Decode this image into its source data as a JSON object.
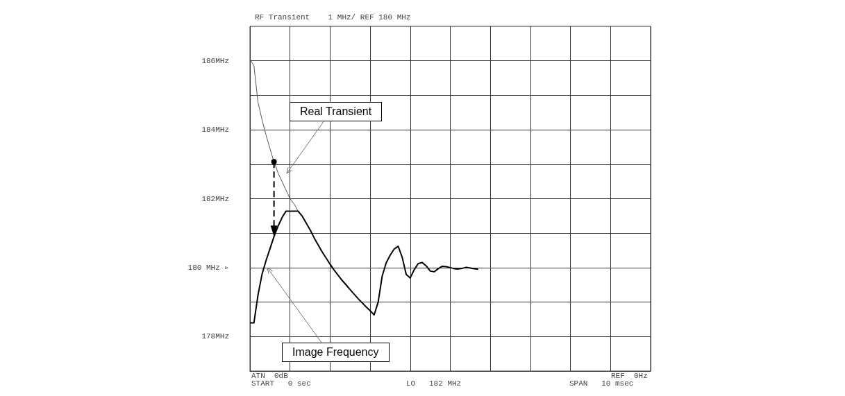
{
  "chart_data": {
    "type": "line",
    "title": "RF Transient    1 MHz/ REF 180 MHz",
    "categories": [
      null,
      null,
      null,
      null,
      null,
      null,
      null,
      null,
      null,
      null,
      null,
      null,
      null,
      null,
      null,
      null,
      null,
      null,
      null,
      null,
      null,
      null,
      null,
      null,
      null,
      null,
      null,
      null,
      null,
      null,
      null,
      null,
      null,
      null,
      null,
      null,
      null,
      null,
      null,
      null,
      null,
      null,
      null,
      null,
      null,
      null,
      null,
      null,
      null,
      null,
      null,
      null,
      null,
      null,
      null,
      null,
      null,
      null,
      null,
      null,
      null,
      null,
      null,
      null,
      null,
      null,
      null,
      null,
      null,
      null,
      null,
      null,
      null,
      null,
      null,
      null,
      null,
      null,
      null,
      null,
      null,
      null,
      null,
      null,
      null,
      null,
      null,
      null,
      null,
      null,
      null,
      null,
      null,
      null,
      null,
      null,
      null,
      null,
      null,
      null,
      null
    ],
    "series": [
      {
        "color": "#555555",
        "values": [
          186.05,
          185.85,
          184.8,
          184.3,
          183.85,
          183.45,
          183.07,
          182.75,
          182.5,
          182.25,
          182.0,
          181.85,
          181.64,
          null,
          null,
          null,
          null,
          null,
          null,
          null,
          null,
          null,
          null,
          null,
          null,
          null,
          null,
          null,
          null,
          null,
          null,
          null,
          null,
          null,
          null,
          null,
          null,
          null,
          null,
          null,
          null,
          null,
          null,
          null,
          null,
          null,
          null,
          null,
          null,
          null,
          null,
          null,
          null,
          null,
          null,
          null,
          null,
          null,
          null,
          null,
          null,
          null,
          null,
          null,
          null,
          null,
          null,
          null,
          null,
          null,
          null,
          null,
          null,
          null,
          null,
          null,
          null,
          null,
          null,
          null,
          null,
          null,
          null,
          null,
          null,
          null,
          null,
          null,
          null,
          null,
          null,
          null,
          null,
          null,
          null,
          null,
          null,
          null,
          null,
          null,
          null
        ]
      },
      {
        "color": "#000000",
        "values": [
          178.4,
          178.4,
          179.2,
          179.8,
          180.2,
          180.55,
          180.9,
          181.2,
          181.45,
          181.64,
          181.64,
          181.64,
          181.64,
          181.5,
          181.3,
          181.1,
          180.87,
          180.66,
          180.46,
          180.28,
          180.1,
          179.93,
          179.78,
          179.63,
          179.5,
          179.36,
          179.23,
          179.1,
          178.98,
          178.86,
          178.75,
          178.63,
          179.0,
          179.75,
          180.14,
          180.36,
          180.54,
          180.62,
          180.3,
          179.8,
          179.7,
          179.94,
          180.12,
          180.15,
          180.05,
          179.9,
          179.88,
          179.97,
          180.04,
          180.03,
          180.0,
          179.97,
          179.96,
          179.98,
          180.01,
          179.99,
          179.97,
          179.95,
          null,
          null,
          null,
          null,
          null,
          null,
          null,
          null,
          null,
          null,
          null,
          null,
          null,
          null,
          null,
          null,
          null,
          null,
          null,
          null,
          null,
          null,
          null,
          null,
          null,
          null,
          null,
          null,
          null,
          null,
          null,
          null,
          null,
          null,
          null,
          null,
          null,
          null,
          null,
          null,
          null,
          null,
          null
        ]
      }
    ],
    "annotations": [
      "Real Transient",
      "Image Frequency",
      "ATN  0dB",
      "START   0 sec",
      "LO   182 MHz",
      "SPAN   10 msec",
      "REF  0Hz"
    ],
    "ylim": [
      177,
      187
    ],
    "yticks": [
      {
        "value": 178,
        "label": "178MHz"
      },
      {
        "value": 179,
        "label": null
      },
      {
        "value": 180,
        "label": "180 MHz ▹"
      },
      {
        "value": 181,
        "label": null
      },
      {
        "value": 182,
        "label": "182MHz"
      },
      {
        "value": 183,
        "label": null
      },
      {
        "value": 184,
        "label": "184MHz"
      },
      {
        "value": 185,
        "label": null
      },
      {
        "value": 186,
        "label": "186MHz"
      }
    ],
    "tick_labels": "y",
    "grid": true,
    "line_style": "solid"
  }
}
